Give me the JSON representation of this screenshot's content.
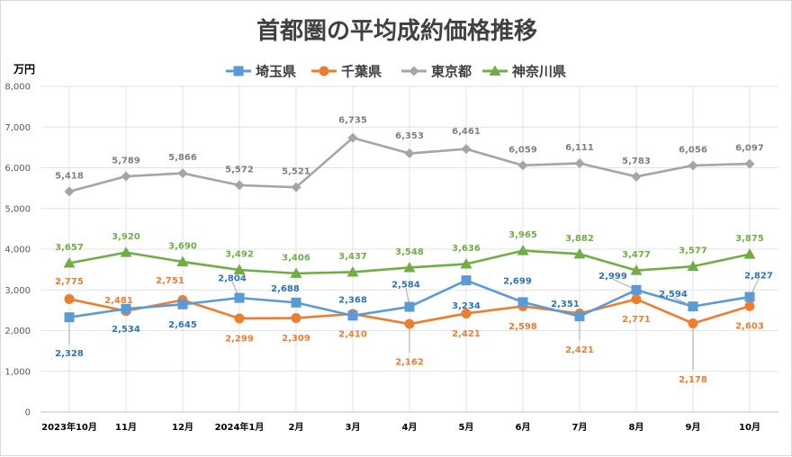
{
  "chart_data": {
    "type": "line",
    "title": "首都圏の平均成約価格推移",
    "ylabel": "万円",
    "xlabel": "",
    "ylim": [
      0,
      8000
    ],
    "yticks": [
      0,
      1000,
      2000,
      3000,
      4000,
      5000,
      6000,
      7000,
      8000
    ],
    "ytick_labels": [
      "0",
      "1,000",
      "2,000",
      "3,000",
      "4,000",
      "5,000",
      "6,000",
      "7,000",
      "8,000"
    ],
    "grid": true,
    "legend_position": "top",
    "categories": [
      "2023年10月",
      "11月",
      "12月",
      "2024年1月",
      "2月",
      "3月",
      "4月",
      "5月",
      "6月",
      "7月",
      "8月",
      "9月",
      "10月"
    ],
    "series": [
      {
        "name": "埼玉県",
        "color": "#5b9bd5",
        "marker": "square",
        "values": [
          2328,
          2534,
          2645,
          2804,
          2688,
          2368,
          2584,
          3234,
          2699,
          2351,
          2999,
          2594,
          2827
        ],
        "labels": [
          "2,328",
          "2,534",
          "2,645",
          "2,804",
          "2,688",
          "2,368",
          "2,584",
          "3,234",
          "2,699",
          "2,351",
          "2,999",
          "2,594",
          "2,827"
        ]
      },
      {
        "name": "千葉県",
        "color": "#ed7d31",
        "marker": "circle",
        "values": [
          2775,
          2481,
          2751,
          2299,
          2309,
          2410,
          2162,
          2421,
          2598,
          2421,
          2771,
          2178,
          2603
        ],
        "labels": [
          "2,775",
          "2,481",
          "2,751",
          "2,299",
          "2,309",
          "2,410",
          "2,162",
          "2,421",
          "2,598",
          "2,421",
          "2,771",
          "2,178",
          "2,603"
        ]
      },
      {
        "name": "東京都",
        "color": "#a5a5a5",
        "marker": "diamond",
        "values": [
          5418,
          5789,
          5866,
          5572,
          5521,
          6735,
          6353,
          6461,
          6059,
          6111,
          5783,
          6056,
          6097
        ],
        "labels": [
          "5,418",
          "5,789",
          "5,866",
          "5,572",
          "5,521",
          "6,735",
          "6,353",
          "6,461",
          "6,059",
          "6,111",
          "5,783",
          "6,056",
          "6,097"
        ]
      },
      {
        "name": "神奈川県",
        "color": "#70ad47",
        "marker": "triangle",
        "values": [
          3657,
          3920,
          3690,
          3492,
          3406,
          3437,
          3548,
          3636,
          3965,
          3882,
          3477,
          3577,
          3875
        ],
        "labels": [
          "3,657",
          "3,920",
          "3,690",
          "3,492",
          "3,406",
          "3,437",
          "3,548",
          "3,636",
          "3,965",
          "3,882",
          "3,477",
          "3,577",
          "3,875"
        ]
      }
    ]
  }
}
